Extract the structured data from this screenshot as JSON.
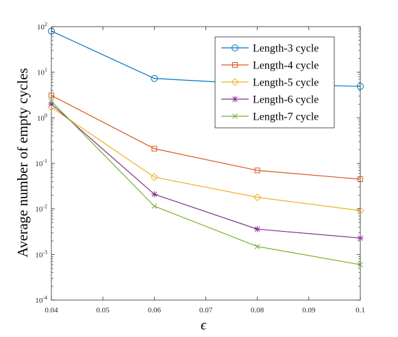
{
  "chart_data": {
    "type": "line",
    "title": "",
    "xlabel": "ϵ",
    "ylabel": "Average number of empty cycles",
    "xlim": [
      0.04,
      0.1
    ],
    "ylim": [
      0.0001,
      100
    ],
    "yscale": "log",
    "grid": false,
    "legend_position": "top-right",
    "x": [
      0.04,
      0.06,
      0.08,
      0.1
    ],
    "x_ticks": [
      "0.04",
      "0.05",
      "0.06",
      "0.07",
      "0.08",
      "0.09",
      "0.1"
    ],
    "y_ticks": [
      {
        "base": "10",
        "exp": "-4"
      },
      {
        "base": "10",
        "exp": "-3"
      },
      {
        "base": "10",
        "exp": "-2"
      },
      {
        "base": "10",
        "exp": "-1"
      },
      {
        "base": "10",
        "exp": "0"
      },
      {
        "base": "10",
        "exp": "1"
      },
      {
        "base": "10",
        "exp": "2"
      }
    ],
    "series": [
      {
        "name": "Length-3 cycle",
        "color": "#0072BD",
        "marker": "circle",
        "values": [
          80,
          7.3,
          5.5,
          4.9
        ]
      },
      {
        "name": "Length-4 cycle",
        "color": "#D95319",
        "marker": "square",
        "values": [
          3.1,
          0.21,
          0.07,
          0.045
        ]
      },
      {
        "name": "Length-5 cycle",
        "color": "#EDB120",
        "marker": "diamond",
        "values": [
          1.7,
          0.05,
          0.018,
          0.0092
        ]
      },
      {
        "name": "Length-6 cycle",
        "color": "#7E2F8E",
        "marker": "asterisk",
        "values": [
          2.0,
          0.021,
          0.0036,
          0.0023
        ]
      },
      {
        "name": "Length-7 cycle",
        "color": "#77AC30",
        "marker": "x",
        "values": [
          2.3,
          0.0115,
          0.0015,
          0.0006
        ]
      }
    ]
  }
}
